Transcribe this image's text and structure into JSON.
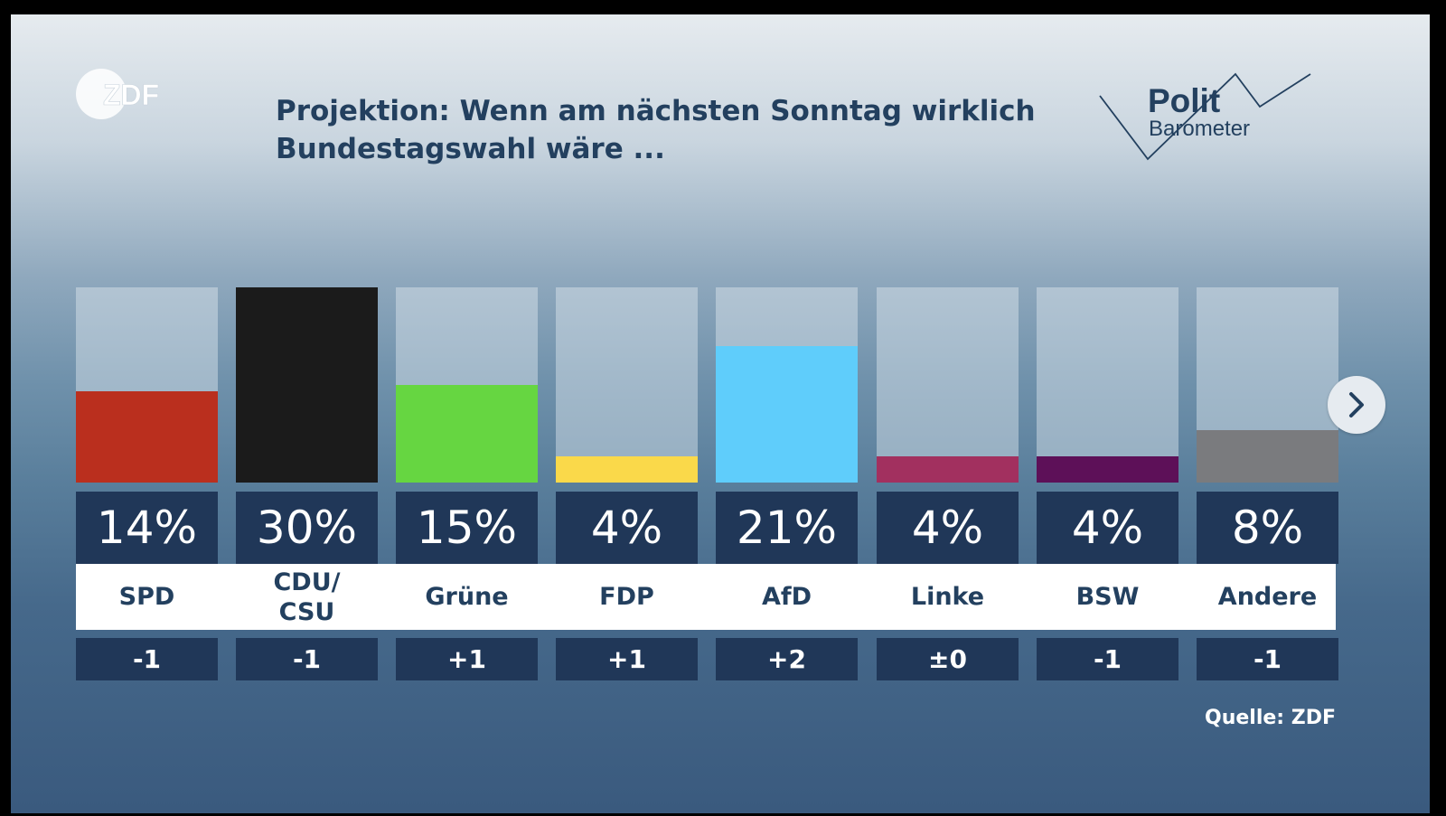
{
  "header": {
    "broadcaster_logo": "ZDF",
    "title_line1": "Projektion: Wenn am nächsten Sonntag wirklich",
    "title_line2": "Bundestagswahl wäre ...",
    "brand_line1": "Polit",
    "brand_line2": "Barometer"
  },
  "source": "Quelle: ZDF",
  "colors": {
    "SPD": "#ba2f1e",
    "CDU/CSU": "#1b1b1b",
    "Grüne": "#66d641",
    "FDP": "#fad94a",
    "AfD": "#5fcdfb",
    "Linke": "#a2305f",
    "BSW": "#5d1058",
    "Andere": "#7a7b7e"
  },
  "next_icon": "chevron-right-icon",
  "chart_data": {
    "type": "bar",
    "title": "Projektion: Wenn am nächsten Sonntag wirklich Bundestagswahl wäre ...",
    "categories": [
      "SPD",
      "CDU/\nCSU",
      "Grüne",
      "FDP",
      "AfD",
      "Linke",
      "BSW",
      "Andere"
    ],
    "values": [
      14,
      30,
      15,
      4,
      21,
      4,
      4,
      8
    ],
    "value_labels": [
      "14%",
      "30%",
      "15%",
      "4%",
      "21%",
      "4%",
      "4%",
      "8%"
    ],
    "change_labels": [
      "-1",
      "-1",
      "+1",
      "+1",
      "+2",
      "±0",
      "-1",
      "-1"
    ],
    "colors": [
      "#ba2f1e",
      "#1b1b1b",
      "#66d641",
      "#fad94a",
      "#5fcdfb",
      "#a2305f",
      "#5d1058",
      "#7a7b7e"
    ],
    "ylim": [
      0,
      30
    ],
    "unit": "%"
  }
}
